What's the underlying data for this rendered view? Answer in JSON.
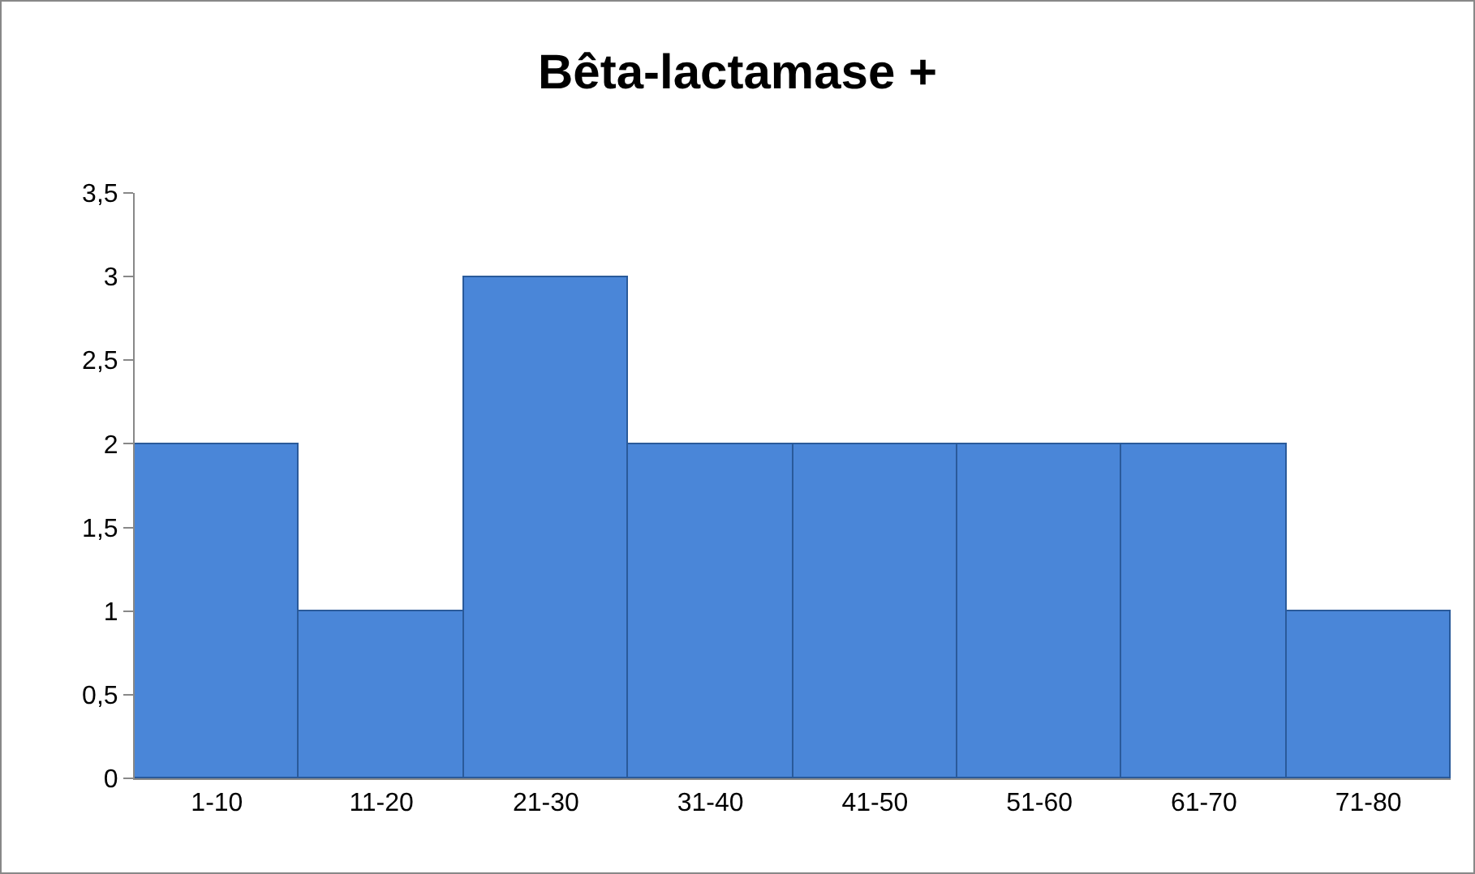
{
  "chart_data": {
    "type": "bar",
    "title": "Bêta-lactamase +",
    "categories": [
      "1-10",
      "11-20",
      "21-30",
      "31-40",
      "41-50",
      "51-60",
      "61-70",
      "71-80"
    ],
    "values": [
      2,
      1,
      3,
      2,
      2,
      2,
      2,
      1
    ],
    "color": "#4a86d8",
    "ylim": [
      0,
      3.5
    ],
    "yticks": [
      0,
      {
        "value": 0.5,
        "label": "0,5"
      },
      1,
      {
        "value": 1.5,
        "label": "1,5"
      },
      2,
      {
        "value": 2.5,
        "label": "2,5"
      },
      3,
      {
        "value": 3.5,
        "label": "3,5"
      }
    ],
    "grid": false
  }
}
